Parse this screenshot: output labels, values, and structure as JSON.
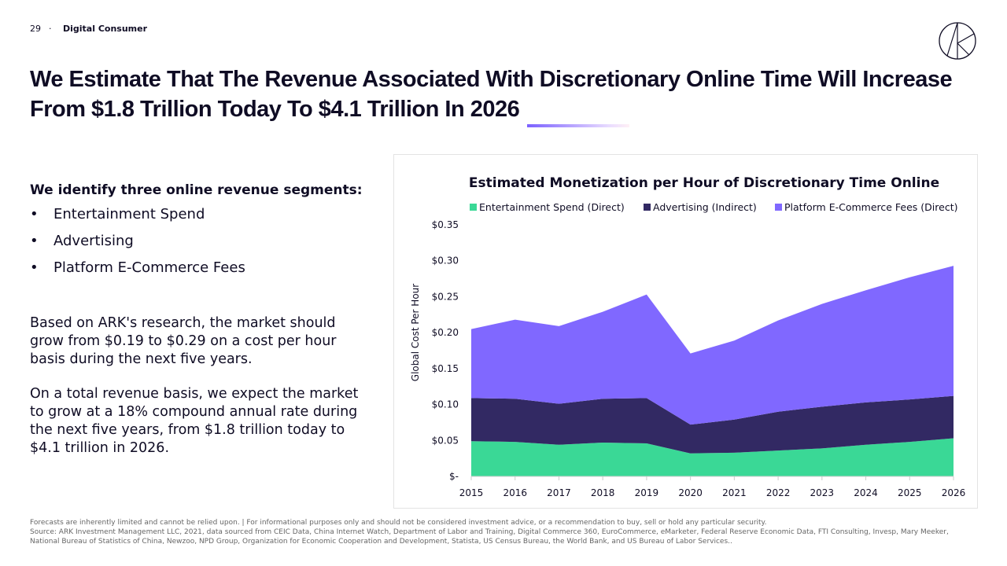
{
  "header": {
    "page_number": "29",
    "separator": "·",
    "section": "Digital Consumer"
  },
  "title": "We Estimate That The Revenue Associated With Discretionary Online Time Will Increase From $1.8 Trillion Today To $4.1 Trillion In 2026",
  "body": {
    "lead": "We identify three online revenue segments:",
    "bullet": "•",
    "segments": [
      "Entertainment Spend",
      "Advertising",
      "Platform E-Commerce Fees"
    ],
    "paragraph1": "Based on ARK's research, the market should grow from $0.19 to $0.29 on a cost per hour basis during the next five years.",
    "paragraph2": "On a total revenue basis, we expect the market to grow at a 18% compound annual rate during the next five years, from $1.8 trillion today to $4.1 trillion in 2026."
  },
  "footer": {
    "disclaimer": "Forecasts are inherently limited and cannot be relied upon. | For informational purposes only and should not be considered investment advice, or a recommendation to buy, sell or hold any particular security.",
    "source": "Source: ARK Investment Management LLC,  2021, data sourced from CEIC Data, China Internet Watch, Department of Labor and Training, Digital Commerce 360, EuroCommerce, eMarketer, Federal Reserve Economic Data, FTI Consulting, Invesp, Mary Meeker, National Bureau of Statistics of China, Newzoo, NPD Group, Organization for Economic Cooperation and Development, Statista, US Census Bureau, the World Bank, and US Bureau of Labor Services.."
  },
  "chart_data": {
    "type": "area",
    "stacked": true,
    "title": "Estimated Monetization per Hour of Discretionary Time Online",
    "ylabel": "Global Cost Per Hour",
    "xlabel": "",
    "x": [
      "2015",
      "2016",
      "2017",
      "2018",
      "2019",
      "2020",
      "2021",
      "2022",
      "2023",
      "2024",
      "2025",
      "2026"
    ],
    "ylim": [
      0,
      0.35
    ],
    "yticks": [
      0,
      0.05,
      0.1,
      0.15,
      0.2,
      0.25,
      0.3,
      0.35
    ],
    "ytick_labels": [
      "$-",
      "$0.05",
      "$0.10",
      "$0.15",
      "$0.20",
      "$0.25",
      "$0.30",
      "$0.35"
    ],
    "grid": false,
    "legend_position": "top",
    "series": [
      {
        "name": "Entertainment Spend (Direct)",
        "color": "#3ad896",
        "values": [
          0.049,
          0.048,
          0.044,
          0.047,
          0.046,
          0.032,
          0.033,
          0.036,
          0.039,
          0.044,
          0.048,
          0.053
        ]
      },
      {
        "name": "Advertising (Indirect)",
        "color": "#322963",
        "values": [
          0.06,
          0.06,
          0.057,
          0.061,
          0.063,
          0.04,
          0.046,
          0.054,
          0.058,
          0.059,
          0.059,
          0.059
        ]
      },
      {
        "name": "Platform E-Commerce Fees (Direct)",
        "color": "#8068ff",
        "values": [
          0.096,
          0.11,
          0.108,
          0.121,
          0.144,
          0.099,
          0.11,
          0.127,
          0.143,
          0.156,
          0.17,
          0.181
        ]
      }
    ]
  }
}
